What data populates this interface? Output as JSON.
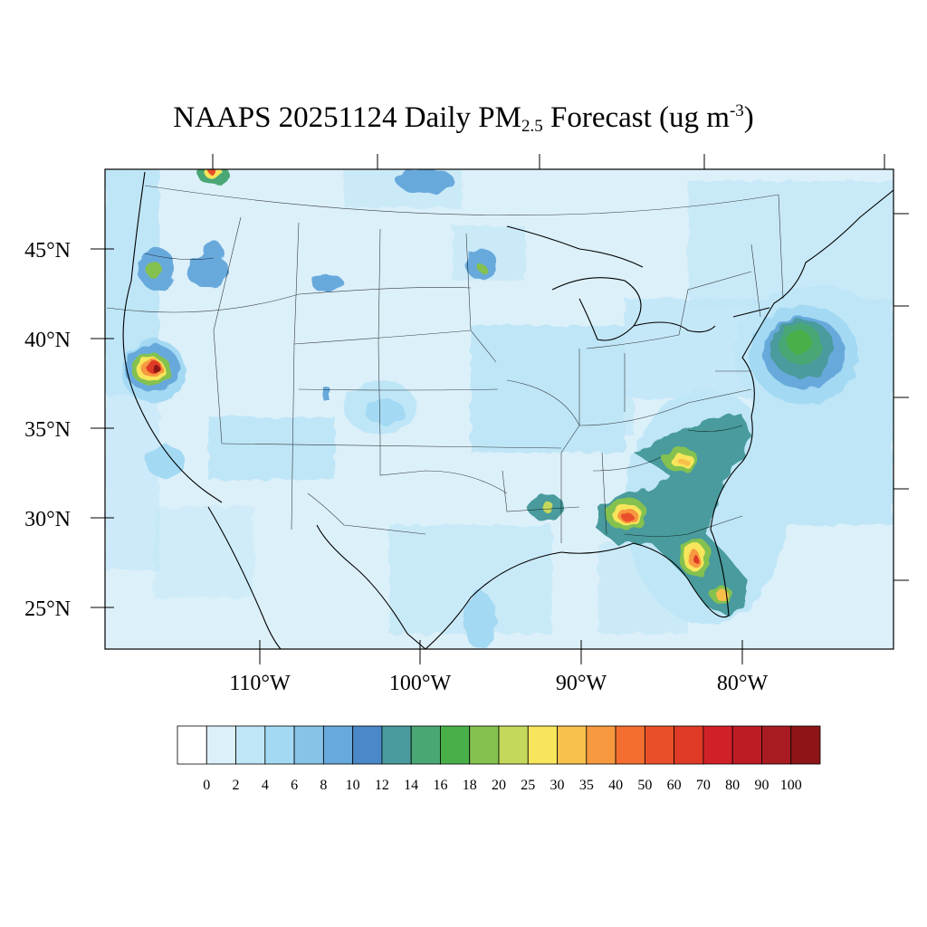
{
  "title": {
    "prefix": "NAAPS 20251124 Daily PM",
    "subscript": "2.5",
    "middle": " Forecast (ug m",
    "superscript": "-3",
    "suffix": ")"
  },
  "map": {
    "projection": "Lambert conformal (CONUS)",
    "lat_labels": [
      "45°N",
      "40°N",
      "35°N",
      "30°N",
      "25°N"
    ],
    "lon_labels": [
      "110°W",
      "100°W",
      "90°W",
      "80°W"
    ],
    "background_color": "#dcf0fa",
    "boundary_color": "#000000"
  },
  "colorbar": {
    "labels": [
      "0",
      "2",
      "4",
      "6",
      "8",
      "10",
      "12",
      "14",
      "16",
      "18",
      "20",
      "25",
      "30",
      "35",
      "40",
      "50",
      "60",
      "70",
      "80",
      "90",
      "100"
    ],
    "colors": [
      "#ffffff",
      "#dcf0fa",
      "#bfe6f7",
      "#a3d9f3",
      "#86c3e6",
      "#67a9dc",
      "#4a88c7",
      "#4a9b9d",
      "#49a774",
      "#49b049",
      "#84c14f",
      "#c4d85b",
      "#f7e65c",
      "#f8c04c",
      "#f7993f",
      "#f36e30",
      "#e95029",
      "#de3a26",
      "#d22029",
      "#be1c25",
      "#a71b21",
      "#8d1518"
    ]
  },
  "chart_data": {
    "type": "heatmap",
    "title": "NAAPS 20251124 Daily PM2.5 Forecast (ug m-3)",
    "units": "ug m-3",
    "levels": [
      0,
      2,
      4,
      6,
      8,
      10,
      12,
      14,
      16,
      18,
      20,
      25,
      30,
      35,
      40,
      50,
      60,
      70,
      80,
      90,
      100
    ],
    "regions": [
      {
        "lon": -121.3,
        "lat": 39.4,
        "max_value": 90
      },
      {
        "lon": -114.0,
        "lat": 49.4,
        "max_value": 60
      },
      {
        "lon": -122.6,
        "lat": 45.2,
        "max_value": 18
      },
      {
        "lon": -116.2,
        "lat": 44.9,
        "max_value": 12
      },
      {
        "lon": -108.9,
        "lat": 44.1,
        "max_value": 12
      },
      {
        "lon": -96.6,
        "lat": 46.3,
        "max_value": 20
      },
      {
        "lon": -103.0,
        "lat": 48.8,
        "max_value": 12
      },
      {
        "lon": -75.2,
        "lat": 40.3,
        "max_value": 18
      },
      {
        "lon": -87.0,
        "lat": 31.6,
        "max_value": 60
      },
      {
        "lon": -83.2,
        "lat": 33.3,
        "max_value": 35
      },
      {
        "lon": -82.0,
        "lat": 28.3,
        "max_value": 50
      },
      {
        "lon": -81.1,
        "lat": 27.1,
        "max_value": 30
      },
      {
        "lon": -92.3,
        "lat": 32.3,
        "max_value": 25
      },
      {
        "lon": -97.4,
        "lat": 26.8,
        "max_value": 8
      }
    ]
  }
}
